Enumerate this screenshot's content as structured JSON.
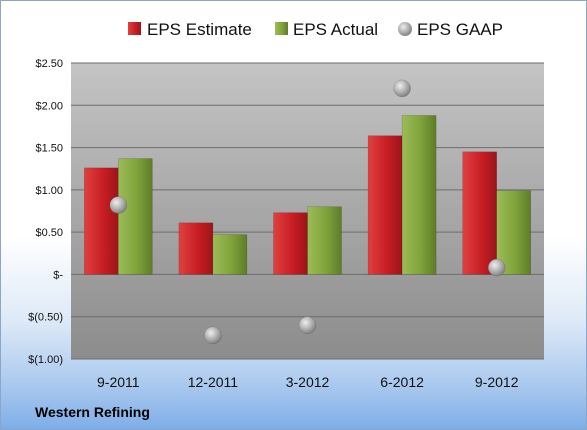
{
  "footer": {
    "company": "Western Refining"
  },
  "colors": {
    "estimate": "#cc1f25",
    "actual": "#7fa33a",
    "gaap": "#a9a9a9",
    "plot_top": "#c4c4c4",
    "plot_bottom": "#8c8c8c"
  },
  "chart_data": {
    "type": "bar",
    "categories": [
      "9-2011",
      "12-2011",
      "3-2012",
      "6-2012",
      "9-2012"
    ],
    "series": [
      {
        "name": "EPS Estimate",
        "kind": "bar",
        "values": [
          1.26,
          0.61,
          0.73,
          1.64,
          1.45
        ]
      },
      {
        "name": "EPS Actual",
        "kind": "bar",
        "values": [
          1.37,
          0.47,
          0.8,
          1.88,
          0.99
        ]
      },
      {
        "name": "EPS GAAP",
        "kind": "marker",
        "values": [
          0.82,
          -0.72,
          -0.6,
          2.2,
          0.08
        ]
      }
    ],
    "y_ticks": [
      2.5,
      2.0,
      1.5,
      1.0,
      0.5,
      0,
      -0.5,
      -1.0
    ],
    "y_tick_labels": [
      "$2.50",
      "$2.00",
      "$1.50",
      "$1.00",
      "$0.50",
      "$-",
      "$(0.50)",
      "$(1.00)"
    ],
    "ylim": [
      -1.0,
      2.5
    ],
    "legend": "top",
    "grid": true
  }
}
